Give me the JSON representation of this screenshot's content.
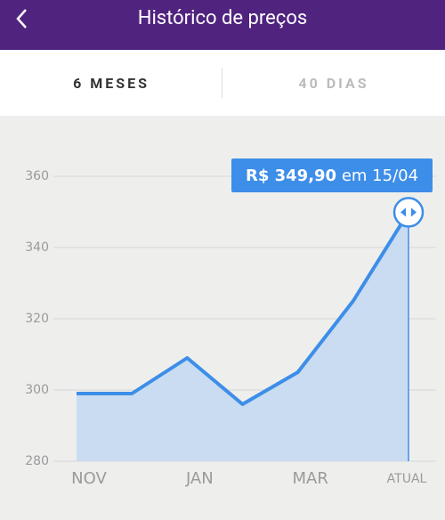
{
  "header": {
    "title": "Histórico de preços"
  },
  "tabs": [
    {
      "label": "6 MESES",
      "active": true
    },
    {
      "label": "40 DIAS",
      "active": false
    }
  ],
  "chart_data": {
    "type": "area",
    "categories": [
      "NOV",
      null,
      "JAN",
      null,
      "MAR",
      null,
      "ATUAL"
    ],
    "values": [
      299,
      299,
      309,
      296,
      305,
      325,
      349.9
    ],
    "value_labels": [
      null,
      null,
      null,
      null,
      null,
      null,
      "R$ 349,90"
    ],
    "annotation": "em 15/04",
    "color": "#3d8ee8",
    "ylim": [
      280,
      360
    ],
    "yticks": [
      280,
      300,
      320,
      340,
      360
    ],
    "grid": true
  }
}
